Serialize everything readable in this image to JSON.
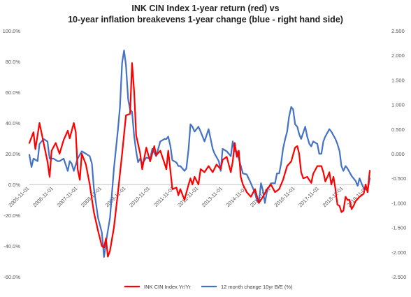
{
  "chart_data": {
    "type": "line",
    "title_lines": [
      "INK CIN Index 1-year return (red) vs",
      "10-year inflation breakevens 1-year change (blue - right hand side)"
    ],
    "x_tick_labels": [
      "2005-11-01",
      "2006-11-01",
      "2007-11-01",
      "2008-11-01",
      "2009-11-01",
      "2010-11-01",
      "2011-11-01",
      "2012-11-01",
      "2013-11-01",
      "2014-11-01",
      "2015-11-01",
      "2016-11-01",
      "2017-11-01",
      "2018-11-01",
      "2019-11-01"
    ],
    "x_range": [
      2005.83,
      2019.95
    ],
    "y_left": {
      "range": [
        -60,
        100
      ],
      "step": 20,
      "tick_labels": [
        "100.0%",
        "80.0%",
        "60.0%",
        "40.0%",
        "20.0%",
        "0.0%",
        "-20.0%",
        "-40.0%",
        "-60.0%"
      ]
    },
    "y_right": {
      "range": [
        -2.5,
        2.5
      ],
      "step": 0.5,
      "tick_labels": [
        "2.500",
        "2.000",
        "1.500",
        "1.000",
        "0.500",
        "0.000",
        "-0.500",
        "-1.000",
        "-1.500",
        "-2.000",
        "-2.500"
      ]
    },
    "series": [
      {
        "name": "INK CIN Index Yr/Yr",
        "axis": "left",
        "color": "#ff0000",
        "points": [
          [
            2005.83,
            27
          ],
          [
            2006.0,
            34
          ],
          [
            2006.08,
            23
          ],
          [
            2006.25,
            40
          ],
          [
            2006.42,
            27
          ],
          [
            2006.58,
            15
          ],
          [
            2006.67,
            5
          ],
          [
            2006.75,
            22
          ],
          [
            2006.92,
            27
          ],
          [
            2007.08,
            20
          ],
          [
            2007.25,
            29
          ],
          [
            2007.42,
            35
          ],
          [
            2007.5,
            30
          ],
          [
            2007.67,
            40
          ],
          [
            2007.75,
            34
          ],
          [
            2007.83,
            10
          ],
          [
            2007.92,
            3
          ],
          [
            2008.0,
            20
          ],
          [
            2008.17,
            13
          ],
          [
            2008.33,
            0
          ],
          [
            2008.5,
            -18
          ],
          [
            2008.67,
            -30
          ],
          [
            2008.83,
            -40
          ],
          [
            2008.92,
            -41
          ],
          [
            2009.0,
            -35
          ],
          [
            2009.08,
            -47
          ],
          [
            2009.17,
            -43
          ],
          [
            2009.33,
            -28
          ],
          [
            2009.5,
            -5
          ],
          [
            2009.67,
            20
          ],
          [
            2009.83,
            45
          ],
          [
            2010.0,
            46
          ],
          [
            2010.08,
            79
          ],
          [
            2010.17,
            60
          ],
          [
            2010.25,
            32
          ],
          [
            2010.42,
            20
          ],
          [
            2010.5,
            10
          ],
          [
            2010.67,
            24
          ],
          [
            2010.83,
            15
          ],
          [
            2011.0,
            25
          ],
          [
            2011.08,
            19
          ],
          [
            2011.25,
            22
          ],
          [
            2011.42,
            14
          ],
          [
            2011.5,
            10
          ],
          [
            2011.58,
            22
          ],
          [
            2011.75,
            -3
          ],
          [
            2011.92,
            -2
          ],
          [
            2012.0,
            -7
          ],
          [
            2012.08,
            -3
          ],
          [
            2012.25,
            -10
          ],
          [
            2012.42,
            0
          ],
          [
            2012.5,
            4
          ],
          [
            2012.58,
            0
          ],
          [
            2012.67,
            5
          ],
          [
            2012.83,
            0
          ],
          [
            2012.92,
            10
          ],
          [
            2013.08,
            8
          ],
          [
            2013.25,
            12
          ],
          [
            2013.42,
            8
          ],
          [
            2013.58,
            13
          ],
          [
            2013.75,
            10
          ],
          [
            2013.83,
            16
          ],
          [
            2014.0,
            18
          ],
          [
            2014.17,
            8
          ],
          [
            2014.25,
            15
          ],
          [
            2014.33,
            27
          ],
          [
            2014.42,
            18
          ],
          [
            2014.5,
            22
          ],
          [
            2014.58,
            5
          ],
          [
            2014.67,
            0
          ],
          [
            2014.83,
            -5
          ],
          [
            2015.0,
            -8
          ],
          [
            2015.17,
            -3
          ],
          [
            2015.33,
            -12
          ],
          [
            2015.5,
            -8
          ],
          [
            2015.67,
            -3
          ],
          [
            2015.83,
            0
          ],
          [
            2016.0,
            -5
          ],
          [
            2016.17,
            -3
          ],
          [
            2016.33,
            3
          ],
          [
            2016.5,
            12
          ],
          [
            2016.67,
            15
          ],
          [
            2016.83,
            24
          ],
          [
            2016.92,
            25
          ],
          [
            2017.0,
            20
          ],
          [
            2017.08,
            8
          ],
          [
            2017.17,
            4
          ],
          [
            2017.33,
            5
          ],
          [
            2017.5,
            1
          ],
          [
            2017.58,
            7
          ],
          [
            2017.75,
            12
          ],
          [
            2017.92,
            12
          ],
          [
            2018.0,
            8
          ],
          [
            2018.08,
            2
          ],
          [
            2018.17,
            5
          ],
          [
            2018.25,
            8
          ],
          [
            2018.33,
            0
          ],
          [
            2018.42,
            5
          ],
          [
            2018.5,
            -3
          ],
          [
            2018.58,
            -13
          ],
          [
            2018.67,
            -14
          ],
          [
            2018.75,
            -18
          ],
          [
            2018.83,
            -17
          ],
          [
            2018.92,
            -8
          ],
          [
            2019.0,
            -10
          ],
          [
            2019.08,
            -10
          ],
          [
            2019.17,
            -16
          ],
          [
            2019.25,
            -14
          ],
          [
            2019.33,
            -11
          ],
          [
            2019.5,
            -8
          ],
          [
            2019.67,
            -6
          ],
          [
            2019.75,
            0
          ],
          [
            2019.83,
            -5
          ],
          [
            2019.92,
            9
          ]
        ]
      },
      {
        "name": "12 month change 10yr B/E (%)",
        "axis": "right",
        "color": "#4472c4",
        "points": [
          [
            2005.83,
            -0.02
          ],
          [
            2005.92,
            -0.27
          ],
          [
            2006.0,
            -0.1
          ],
          [
            2006.17,
            -0.15
          ],
          [
            2006.25,
            0.2
          ],
          [
            2006.42,
            0.3
          ],
          [
            2006.58,
            0.25
          ],
          [
            2006.67,
            -0.1
          ],
          [
            2006.83,
            -0.1
          ],
          [
            2007.0,
            -0.15
          ],
          [
            2007.08,
            -0.15
          ],
          [
            2007.25,
            -0.1
          ],
          [
            2007.42,
            -0.35
          ],
          [
            2007.5,
            -0.15
          ],
          [
            2007.58,
            -0.2
          ],
          [
            2007.67,
            -0.35
          ],
          [
            2007.83,
            -0.1
          ],
          [
            2008.0,
            0.05
          ],
          [
            2008.17,
            0.0
          ],
          [
            2008.33,
            -0.05
          ],
          [
            2008.42,
            -0.2
          ],
          [
            2008.5,
            -0.7
          ],
          [
            2008.67,
            -1.3
          ],
          [
            2008.83,
            -1.6
          ],
          [
            2008.92,
            -2.1
          ],
          [
            2009.0,
            -1.8
          ],
          [
            2009.17,
            -1.3
          ],
          [
            2009.33,
            -0.3
          ],
          [
            2009.5,
            0.5
          ],
          [
            2009.58,
            0.95
          ],
          [
            2009.67,
            1.85
          ],
          [
            2009.75,
            2.1
          ],
          [
            2009.83,
            1.8
          ],
          [
            2009.92,
            1.1
          ],
          [
            2010.0,
            0.9
          ],
          [
            2010.08,
            0.85
          ],
          [
            2010.17,
            0.35
          ],
          [
            2010.25,
            0.05
          ],
          [
            2010.33,
            -0.17
          ],
          [
            2010.42,
            -0.1
          ],
          [
            2010.5,
            -0.2
          ],
          [
            2010.67,
            -0.08
          ],
          [
            2010.83,
            -0.1
          ],
          [
            2010.92,
            0.1
          ],
          [
            2011.08,
            -0.05
          ],
          [
            2011.25,
            0.25
          ],
          [
            2011.42,
            0.3
          ],
          [
            2011.5,
            0.3
          ],
          [
            2011.58,
            0.35
          ],
          [
            2011.67,
            0.15
          ],
          [
            2011.75,
            -0.13
          ],
          [
            2011.92,
            -0.18
          ],
          [
            2012.0,
            -0.25
          ],
          [
            2012.08,
            -0.25
          ],
          [
            2012.25,
            -0.35
          ],
          [
            2012.33,
            -0.3
          ],
          [
            2012.42,
            0.1
          ],
          [
            2012.5,
            0.6
          ],
          [
            2012.58,
            0.55
          ],
          [
            2012.67,
            0.45
          ],
          [
            2012.83,
            0.55
          ],
          [
            2012.92,
            0.45
          ],
          [
            2013.08,
            0.25
          ],
          [
            2013.25,
            0.5
          ],
          [
            2013.42,
            0.1
          ],
          [
            2013.5,
            0.0
          ],
          [
            2013.67,
            -0.15
          ],
          [
            2013.75,
            -0.35
          ],
          [
            2013.83,
            0.1
          ],
          [
            2014.0,
            0.05
          ],
          [
            2014.17,
            -0.05
          ],
          [
            2014.25,
            0.25
          ],
          [
            2014.33,
            0.05
          ],
          [
            2014.42,
            0.05
          ],
          [
            2014.5,
            -0.1
          ],
          [
            2014.67,
            -0.4
          ],
          [
            2014.83,
            -0.42
          ],
          [
            2015.0,
            -0.6
          ],
          [
            2015.17,
            -0.8
          ],
          [
            2015.25,
            -0.95
          ],
          [
            2015.33,
            -1.0
          ],
          [
            2015.42,
            -0.6
          ],
          [
            2015.5,
            -0.75
          ],
          [
            2015.58,
            -1.0
          ],
          [
            2015.67,
            -0.75
          ],
          [
            2015.83,
            -0.6
          ],
          [
            2016.0,
            -0.6
          ],
          [
            2016.08,
            -0.4
          ],
          [
            2016.17,
            -0.4
          ],
          [
            2016.25,
            -0.2
          ],
          [
            2016.33,
            0.1
          ],
          [
            2016.42,
            0.3
          ],
          [
            2016.5,
            0.45
          ],
          [
            2016.58,
            0.75
          ],
          [
            2016.67,
            0.95
          ],
          [
            2016.75,
            0.9
          ],
          [
            2016.83,
            0.6
          ],
          [
            2016.92,
            0.55
          ],
          [
            2017.0,
            0.4
          ],
          [
            2017.08,
            0.3
          ],
          [
            2017.25,
            0.55
          ],
          [
            2017.33,
            0.35
          ],
          [
            2017.42,
            0.2
          ],
          [
            2017.5,
            0.15
          ],
          [
            2017.58,
            0.25
          ],
          [
            2017.75,
            0.2
          ],
          [
            2017.83,
            0.0
          ],
          [
            2017.92,
            0.0
          ],
          [
            2018.0,
            0.25
          ],
          [
            2018.08,
            0.35
          ],
          [
            2018.25,
            0.5
          ],
          [
            2018.33,
            0.45
          ],
          [
            2018.5,
            0.3
          ],
          [
            2018.58,
            0.2
          ],
          [
            2018.67,
            0.05
          ],
          [
            2018.75,
            -0.25
          ],
          [
            2018.83,
            -0.35
          ],
          [
            2018.92,
            -0.25
          ],
          [
            2019.0,
            -0.3
          ],
          [
            2019.17,
            -0.45
          ],
          [
            2019.33,
            -0.55
          ],
          [
            2019.42,
            -0.65
          ],
          [
            2019.5,
            -0.5
          ],
          [
            2019.58,
            -0.6
          ],
          [
            2019.67,
            -0.7
          ],
          [
            2019.75,
            -0.72
          ],
          [
            2019.83,
            -0.75
          ],
          [
            2019.92,
            -0.5
          ]
        ]
      }
    ],
    "grid": false,
    "legend_position": "bottom"
  }
}
